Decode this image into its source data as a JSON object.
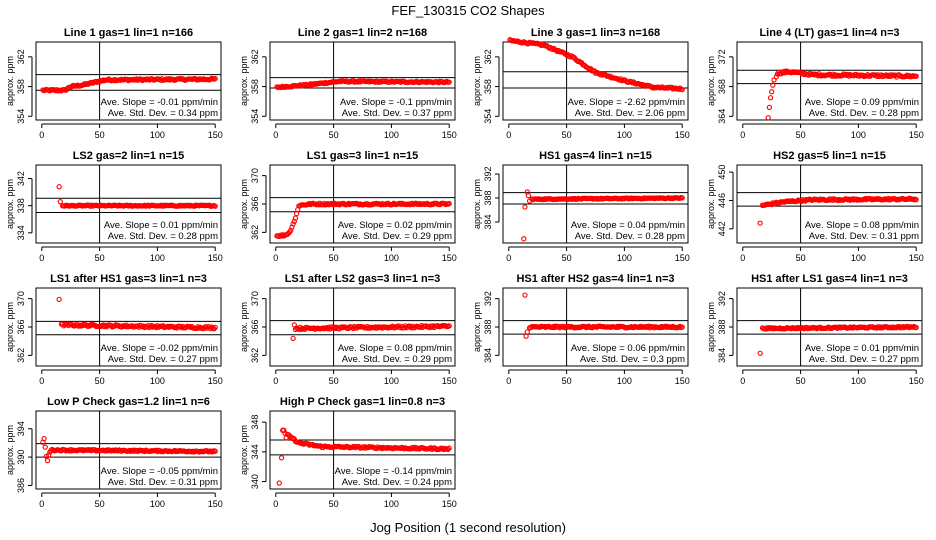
{
  "figure": {
    "title": "FEF_130315  CO2 Shapes",
    "xlabel": "Jog Position (1 second resolution)"
  },
  "chart_data": [
    {
      "type": "scatter",
      "title": "Line 1 gas=1 lin=1 n=166",
      "ylabel": "approx. ppm",
      "xlim": [
        -5,
        155
      ],
      "xticks": [
        0,
        50,
        100,
        150
      ],
      "ylim": [
        353.5,
        364
      ],
      "yticks": [
        354,
        358,
        362
      ],
      "hlines": [
        359.6,
        357.5
      ],
      "vline": 50,
      "slope_text": "Ave. Slope = -0.01  ppm/min",
      "sd_text": "Ave. Std. Dev. = 0.34  ppm",
      "profile": {
        "seg": [
          [
            1,
            357.5
          ],
          [
            20,
            357.5
          ],
          [
            25,
            358.0
          ],
          [
            35,
            358.2
          ],
          [
            55,
            358.9
          ],
          [
            150,
            359.0
          ]
        ],
        "noise": 0.12
      }
    },
    {
      "type": "scatter",
      "title": "Line 2 gas=1 lin=2 n=168",
      "ylabel": "approx. ppm",
      "xlim": [
        -5,
        155
      ],
      "xticks": [
        0,
        50,
        100,
        150
      ],
      "ylim": [
        353.5,
        364
      ],
      "yticks": [
        354,
        358,
        362
      ],
      "hlines": [
        359.2,
        357.8
      ],
      "vline": 50,
      "slope_text": "Ave. Slope = -0.1  ppm/min",
      "sd_text": "Ave. Std. Dev. = 0.37  ppm",
      "profile": {
        "seg": [
          [
            1,
            357.9
          ],
          [
            25,
            358.2
          ],
          [
            55,
            358.7
          ],
          [
            150,
            358.6
          ]
        ],
        "noise": 0.1
      }
    },
    {
      "type": "scatter",
      "title": "Line 3 gas=1 lin=3 n=168",
      "ylabel": "approx. ppm",
      "xlim": [
        -5,
        155
      ],
      "xticks": [
        0,
        50,
        100,
        150
      ],
      "ylim": [
        353.5,
        364
      ],
      "yticks": [
        354,
        358,
        362
      ],
      "hlines": [
        360,
        357.8
      ],
      "vline": 50,
      "slope_text": "Ave. Slope = -2.62  ppm/min",
      "sd_text": "Ave. Std. Dev. = 2.06  ppm",
      "profile": {
        "seg": [
          [
            1,
            364.2
          ],
          [
            30,
            363.6
          ],
          [
            55,
            362.0
          ],
          [
            75,
            359.9
          ],
          [
            100,
            358.8
          ],
          [
            125,
            357.9
          ],
          [
            150,
            357.7
          ]
        ],
        "noise": 0.12
      }
    },
    {
      "type": "scatter",
      "title": "Line 4 (LT) gas=1 lin=4 n=3",
      "ylabel": "approx. ppm",
      "xlim": [
        -5,
        155
      ],
      "xticks": [
        0,
        50,
        100,
        150
      ],
      "ylim": [
        363.5,
        374
      ],
      "yticks": [
        364,
        368,
        372
      ],
      "hlines": [
        370.2,
        368.4
      ],
      "vline": 50,
      "slope_text": "Ave. Slope = 0.09  ppm/min",
      "sd_text": "Ave. Std. Dev. = 0.28  ppm",
      "profile": {
        "seg": [
          [
            30,
            369.8
          ],
          [
            40,
            370.0
          ],
          [
            60,
            369.6
          ],
          [
            150,
            369.4
          ]
        ],
        "noise": 0.15,
        "extra": [
          [
            22,
            363.8
          ],
          [
            23,
            365.2
          ],
          [
            24,
            366.5
          ],
          [
            25,
            367.3
          ],
          [
            26,
            368.2
          ],
          [
            27,
            368.9
          ],
          [
            29,
            369.3
          ]
        ]
      }
    },
    {
      "type": "scatter",
      "title": "LS2 gas=2 lin=1 n=15",
      "ylabel": "approx. ppm",
      "xlim": [
        -5,
        155
      ],
      "xticks": [
        0,
        50,
        100,
        150
      ],
      "ylim": [
        332.5,
        344
      ],
      "yticks": [
        334,
        338,
        342
      ],
      "hlines": [
        339.1,
        337.0
      ],
      "vline": 50,
      "slope_text": "Ave. Slope = 0.01  ppm/min",
      "sd_text": "Ave. Std. Dev. = 0.28  ppm",
      "profile": {
        "seg": [
          [
            18,
            338.0
          ],
          [
            150,
            338.0
          ]
        ],
        "noise": 0.08,
        "extra": [
          [
            15,
            340.8
          ],
          [
            16,
            338.6
          ]
        ]
      }
    },
    {
      "type": "scatter",
      "title": "LS1 gas=3 lin=1 n=15",
      "ylabel": "approx. ppm",
      "xlim": [
        -5,
        155
      ],
      "xticks": [
        0,
        50,
        100,
        150
      ],
      "ylim": [
        360.5,
        371.5
      ],
      "yticks": [
        362,
        366,
        370
      ],
      "hlines": [
        366.9,
        364.9
      ],
      "vline": 50,
      "slope_text": "Ave. Slope = 0.02  ppm/min",
      "sd_text": "Ave. Std. Dev. = 0.29  ppm",
      "profile": {
        "seg": [
          [
            1,
            361.5
          ],
          [
            8,
            361.6
          ],
          [
            12,
            362.0
          ],
          [
            17,
            364.0
          ],
          [
            20,
            365.8
          ],
          [
            30,
            366.0
          ],
          [
            150,
            366.0
          ]
        ],
        "noise": 0.12
      }
    },
    {
      "type": "scatter",
      "title": "HS1 gas=4 lin=1 n=15",
      "ylabel": "approx. ppm",
      "xlim": [
        -5,
        155
      ],
      "xticks": [
        0,
        50,
        100,
        150
      ],
      "ylim": [
        380.5,
        393.5
      ],
      "yticks": [
        384,
        388,
        392
      ],
      "hlines": [
        388.9,
        387.0
      ],
      "vline": 50,
      "slope_text": "Ave. Slope = 0.04  ppm/min",
      "sd_text": "Ave. Std. Dev. = 0.28  ppm",
      "profile": {
        "seg": [
          [
            20,
            387.8
          ],
          [
            150,
            388.0
          ]
        ],
        "noise": 0.08,
        "extra": [
          [
            13,
            381.2
          ],
          [
            14,
            386.5
          ],
          [
            16,
            389.0
          ],
          [
            17,
            388.4
          ],
          [
            18,
            387.5
          ]
        ]
      }
    },
    {
      "type": "scatter",
      "title": "HS2 gas=5 lin=1 n=15",
      "ylabel": "approx. ppm",
      "xlim": [
        -5,
        155
      ],
      "xticks": [
        0,
        50,
        100,
        150
      ],
      "ylim": [
        440,
        451
      ],
      "yticks": [
        442,
        446,
        450
      ],
      "hlines": [
        447.1,
        445.2
      ],
      "vline": 50,
      "slope_text": "Ave. Slope = 0.08  ppm/min",
      "sd_text": "Ave. Std. Dev. = 0.31  ppm",
      "profile": {
        "seg": [
          [
            17,
            445.3
          ],
          [
            35,
            445.8
          ],
          [
            60,
            446.1
          ],
          [
            150,
            446.2
          ]
        ],
        "noise": 0.12,
        "extra": [
          [
            15,
            442.8
          ]
        ]
      }
    },
    {
      "type": "scatter",
      "title": "LS1 after HS1 gas=3 lin=1 n=3",
      "ylabel": "approx. ppm",
      "xlim": [
        -5,
        155
      ],
      "xticks": [
        0,
        50,
        100,
        150
      ],
      "ylim": [
        360.5,
        371.5
      ],
      "yticks": [
        362,
        366,
        370
      ],
      "hlines": [
        366.8,
        364.9
      ],
      "vline": 50,
      "slope_text": "Ave. Slope = -0.02  ppm/min",
      "sd_text": "Ave. Std. Dev. = 0.27  ppm",
      "profile": {
        "seg": [
          [
            17,
            366.3
          ],
          [
            150,
            365.9
          ]
        ],
        "noise": 0.15,
        "extra": [
          [
            15,
            369.9
          ]
        ]
      }
    },
    {
      "type": "scatter",
      "title": "LS1 after LS2 gas=3 lin=1 n=3",
      "ylabel": "approx. ppm",
      "xlim": [
        -5,
        155
      ],
      "xticks": [
        0,
        50,
        100,
        150
      ],
      "ylim": [
        360.5,
        371.5
      ],
      "yticks": [
        362,
        366,
        370
      ],
      "hlines": [
        366.9,
        364.9
      ],
      "vline": 50,
      "slope_text": "Ave. Slope = 0.08  ppm/min",
      "sd_text": "Ave. Std. Dev. = 0.29  ppm",
      "profile": {
        "seg": [
          [
            17,
            365.8
          ],
          [
            150,
            366.1
          ]
        ],
        "noise": 0.15,
        "extra": [
          [
            15,
            364.4
          ],
          [
            16,
            366.3
          ]
        ]
      }
    },
    {
      "type": "scatter",
      "title": "HS1 after HS2 gas=4 lin=1 n=3",
      "ylabel": "approx. ppm",
      "xlim": [
        -5,
        155
      ],
      "xticks": [
        0,
        50,
        100,
        150
      ],
      "ylim": [
        382.5,
        393.5
      ],
      "yticks": [
        384,
        388,
        392
      ],
      "hlines": [
        388.9,
        387.0
      ],
      "vline": 50,
      "slope_text": "Ave. Slope = 0.06  ppm/min",
      "sd_text": "Ave. Std. Dev. = 0.3  ppm",
      "profile": {
        "seg": [
          [
            18,
            388.0
          ],
          [
            150,
            388.0
          ]
        ],
        "noise": 0.12,
        "extra": [
          [
            14,
            392.5
          ],
          [
            15,
            386.7
          ],
          [
            16,
            387.3
          ]
        ]
      }
    },
    {
      "type": "scatter",
      "title": "HS1 after LS1 gas=4 lin=1 n=3",
      "ylabel": "approx. ppm",
      "xlim": [
        -5,
        155
      ],
      "xticks": [
        0,
        50,
        100,
        150
      ],
      "ylim": [
        382.5,
        393.5
      ],
      "yticks": [
        384,
        388,
        392
      ],
      "hlines": [
        388.9,
        387.0
      ],
      "vline": 50,
      "slope_text": "Ave. Slope = 0.01  ppm/min",
      "sd_text": "Ave. Std. Dev. = 0.27  ppm",
      "profile": {
        "seg": [
          [
            17,
            387.8
          ],
          [
            150,
            388.0
          ]
        ],
        "noise": 0.1,
        "extra": [
          [
            15,
            384.3
          ]
        ]
      }
    },
    {
      "type": "scatter",
      "title": "Low P Check gas=1.2 lin=1 n=6",
      "ylabel": "approx. ppm",
      "xlim": [
        -5,
        155
      ],
      "xticks": [
        0,
        50,
        100,
        150
      ],
      "ylim": [
        385.5,
        396.5
      ],
      "yticks": [
        386,
        390,
        394
      ],
      "hlines": [
        391.9,
        390.0
      ],
      "vline": 50,
      "slope_text": "Ave. Slope = -0.05  ppm/min",
      "sd_text": "Ave. Std. Dev. = 0.31  ppm",
      "profile": {
        "seg": [
          [
            8,
            391.0
          ],
          [
            150,
            390.8
          ]
        ],
        "noise": 0.1,
        "extra": [
          [
            1,
            392.1
          ],
          [
            2,
            392.6
          ],
          [
            3,
            391.4
          ],
          [
            4,
            390.1
          ],
          [
            5,
            389.5
          ],
          [
            6,
            390.3
          ],
          [
            7,
            390.7
          ]
        ]
      }
    },
    {
      "type": "scatter",
      "title": "High P Check gas=1 lin=0.8 n=3",
      "ylabel": "approx. ppm",
      "xlim": [
        -5,
        155
      ],
      "xticks": [
        0,
        50,
        100,
        150
      ],
      "ylim": [
        339,
        349.5
      ],
      "yticks": [
        340,
        344,
        348
      ],
      "hlines": [
        345.6,
        343.6
      ],
      "vline": 50,
      "slope_text": "Ave. Slope = -0.14  ppm/min",
      "sd_text": "Ave. Std. Dev. = 0.24  ppm",
      "profile": {
        "seg": [
          [
            10,
            346.3
          ],
          [
            20,
            345.2
          ],
          [
            40,
            344.7
          ],
          [
            150,
            344.4
          ]
        ],
        "noise": 0.12,
        "extra": [
          [
            3,
            339.8
          ],
          [
            5,
            343.2
          ],
          [
            6,
            346.9
          ],
          [
            7,
            346.9
          ],
          [
            8,
            346.5
          ],
          [
            9,
            345.9
          ]
        ]
      }
    }
  ]
}
